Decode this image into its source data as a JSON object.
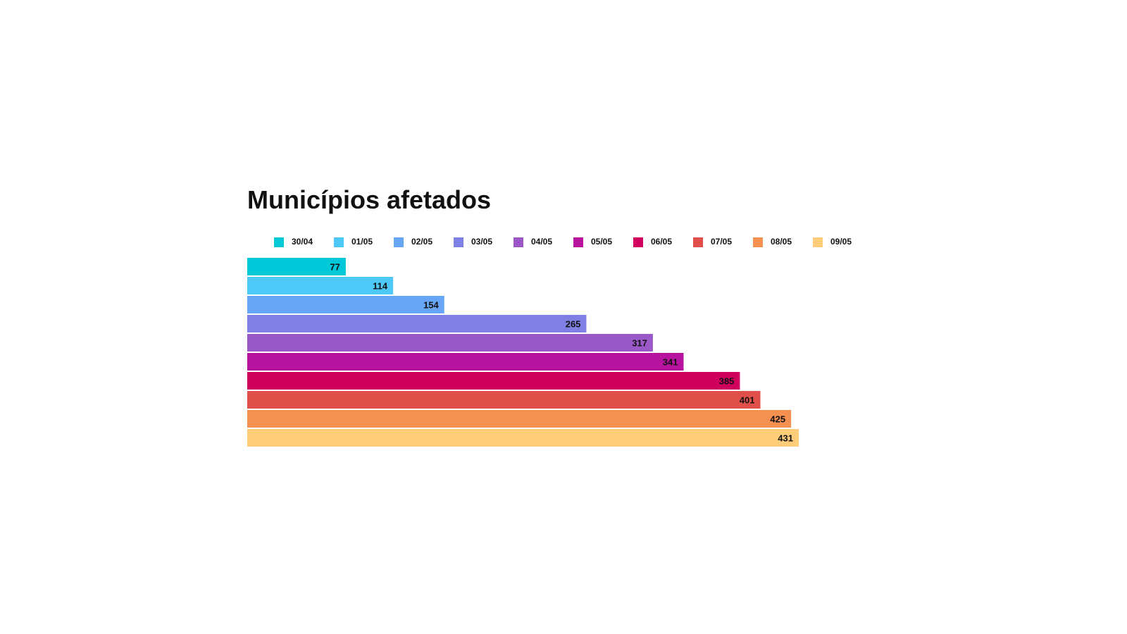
{
  "chart_data": {
    "type": "bar",
    "orientation": "horizontal",
    "title": "Municípios afetados",
    "categories": [
      "30/04",
      "01/05",
      "02/05",
      "03/05",
      "04/05",
      "05/05",
      "06/05",
      "07/05",
      "08/05",
      "09/05"
    ],
    "values": [
      77,
      114,
      154,
      265,
      317,
      341,
      385,
      401,
      425,
      431
    ],
    "colors": [
      "#00c8d8",
      "#4ec8f6",
      "#67a6f7",
      "#7e80e3",
      "#9a58c8",
      "#b7139e",
      "#d0005d",
      "#e14f4a",
      "#f49150",
      "#ffcc79"
    ],
    "xlabel": "",
    "ylabel": "",
    "xlim": [
      0,
      431
    ],
    "grid": false,
    "legend": "top",
    "data_labels": true
  }
}
